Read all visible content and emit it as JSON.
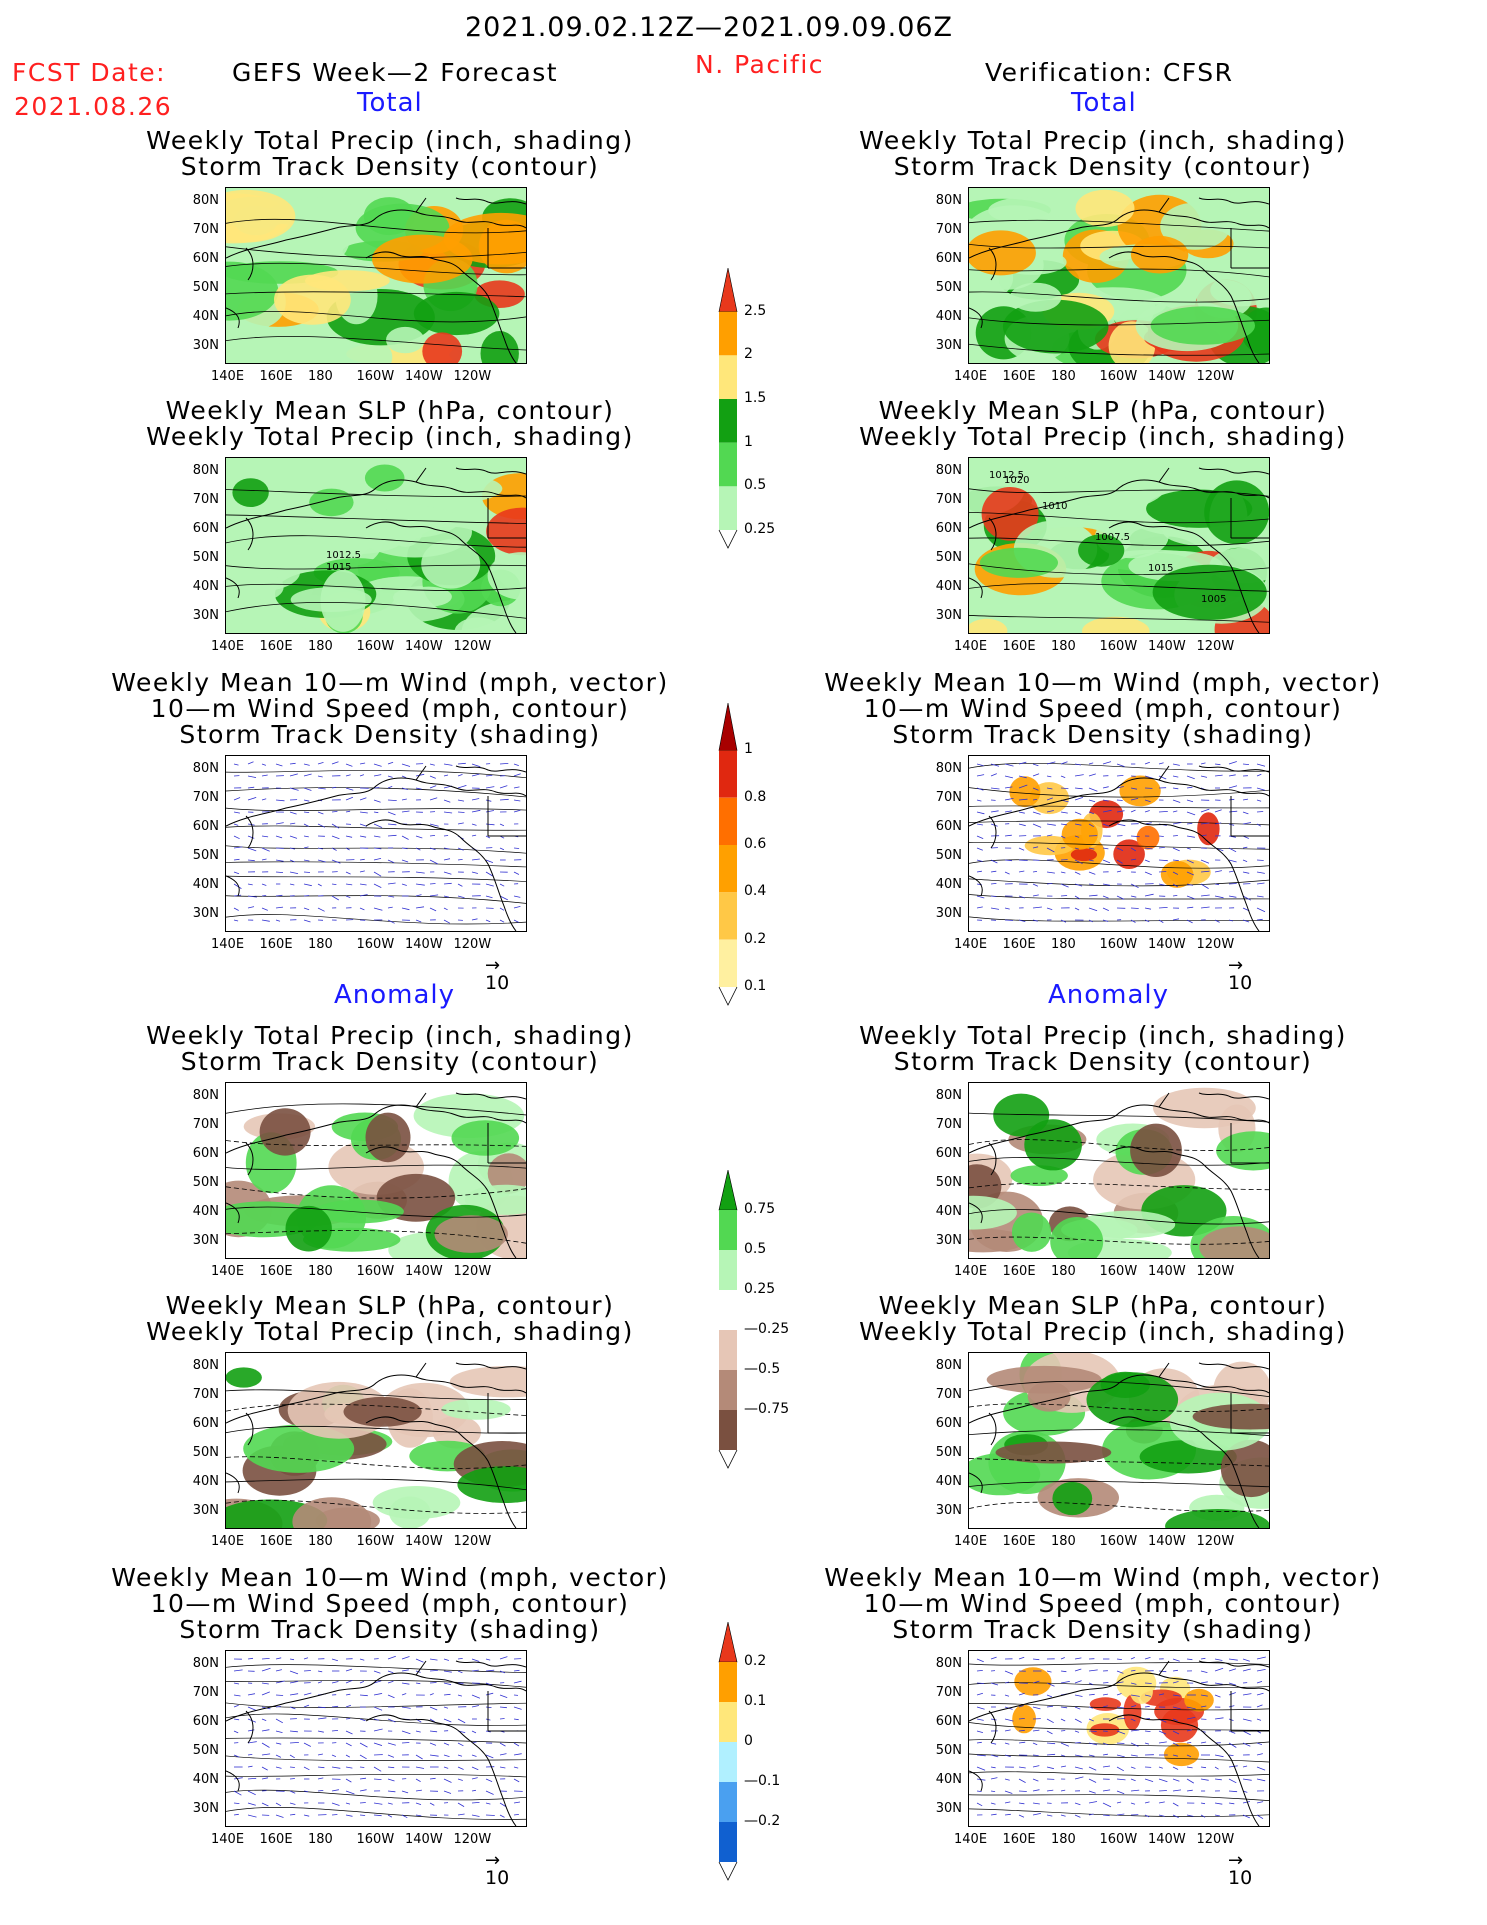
{
  "header": {
    "period": "2021.09.02.12Z—2021.09.09.06Z",
    "fcst_date_label": "FCST Date:",
    "fcst_date": "2021.08.26",
    "left_title": "GEFS Week—2 Forecast",
    "region": "N. Pacific",
    "right_title": "Verification: CFSR"
  },
  "sections": {
    "total": "Total",
    "anomaly": "Anomaly"
  },
  "panel_titles": {
    "precip_storm": [
      "Weekly Total Precip (inch, shading)",
      "Storm Track Density (contour)"
    ],
    "slp_precip": [
      "Weekly Mean SLP (hPa, contour)",
      "Weekly Total Precip (inch, shading)"
    ],
    "wind": [
      "Weekly Mean 10—m Wind (mph, vector)",
      "10—m Wind Speed (mph, contour)",
      "Storm Track Density (shading)"
    ]
  },
  "axes": {
    "lat_labels": [
      "80N",
      "70N",
      "60N",
      "50N",
      "40N",
      "30N"
    ],
    "lon_labels": [
      "140E",
      "160E",
      "180",
      "160W",
      "140W",
      "120W"
    ]
  },
  "vector_ref": "10",
  "slp_labels": {
    "left": [
      "1012.5",
      "1015"
    ],
    "right": [
      "1012.5",
      "1010",
      "1007.5",
      "1015",
      "1005",
      "1020"
    ]
  },
  "colorbars": {
    "precip_total": {
      "labels": [
        "2.5",
        "2",
        "1.5",
        "1",
        "0.5",
        "0.25"
      ],
      "colors": [
        "#e8381c",
        "#ff9f00",
        "#ffe77a",
        "#12a012",
        "#52d852",
        "#b6f5b6"
      ]
    },
    "storm_total": {
      "labels": [
        "1",
        "0.8",
        "0.6",
        "0.4",
        "0.2",
        "0.1"
      ],
      "colors": [
        "#a80000",
        "#e02810",
        "#ff6f00",
        "#ffa000",
        "#ffc846",
        "#fff0a0"
      ]
    },
    "precip_anom": {
      "labels": [
        "0.75",
        "0.5",
        "0.25",
        "—0.25",
        "—0.5",
        "—0.75"
      ],
      "colors": [
        "#12a012",
        "#52d852",
        "#b6f5b6",
        "#ffffff",
        "#e6c6b6",
        "#b48a78",
        "#7a5040"
      ]
    },
    "storm_anom": {
      "labels": [
        "0.2",
        "0.1",
        "0",
        "—0.1",
        "—0.2"
      ],
      "colors": [
        "#e8381c",
        "#ff9f00",
        "#ffe77a",
        "#b0f0ff",
        "#4aa0f0",
        "#1060d0"
      ]
    },
    "colors": {
      "land_outline": "#000000",
      "vector": "#3030d0"
    }
  }
}
